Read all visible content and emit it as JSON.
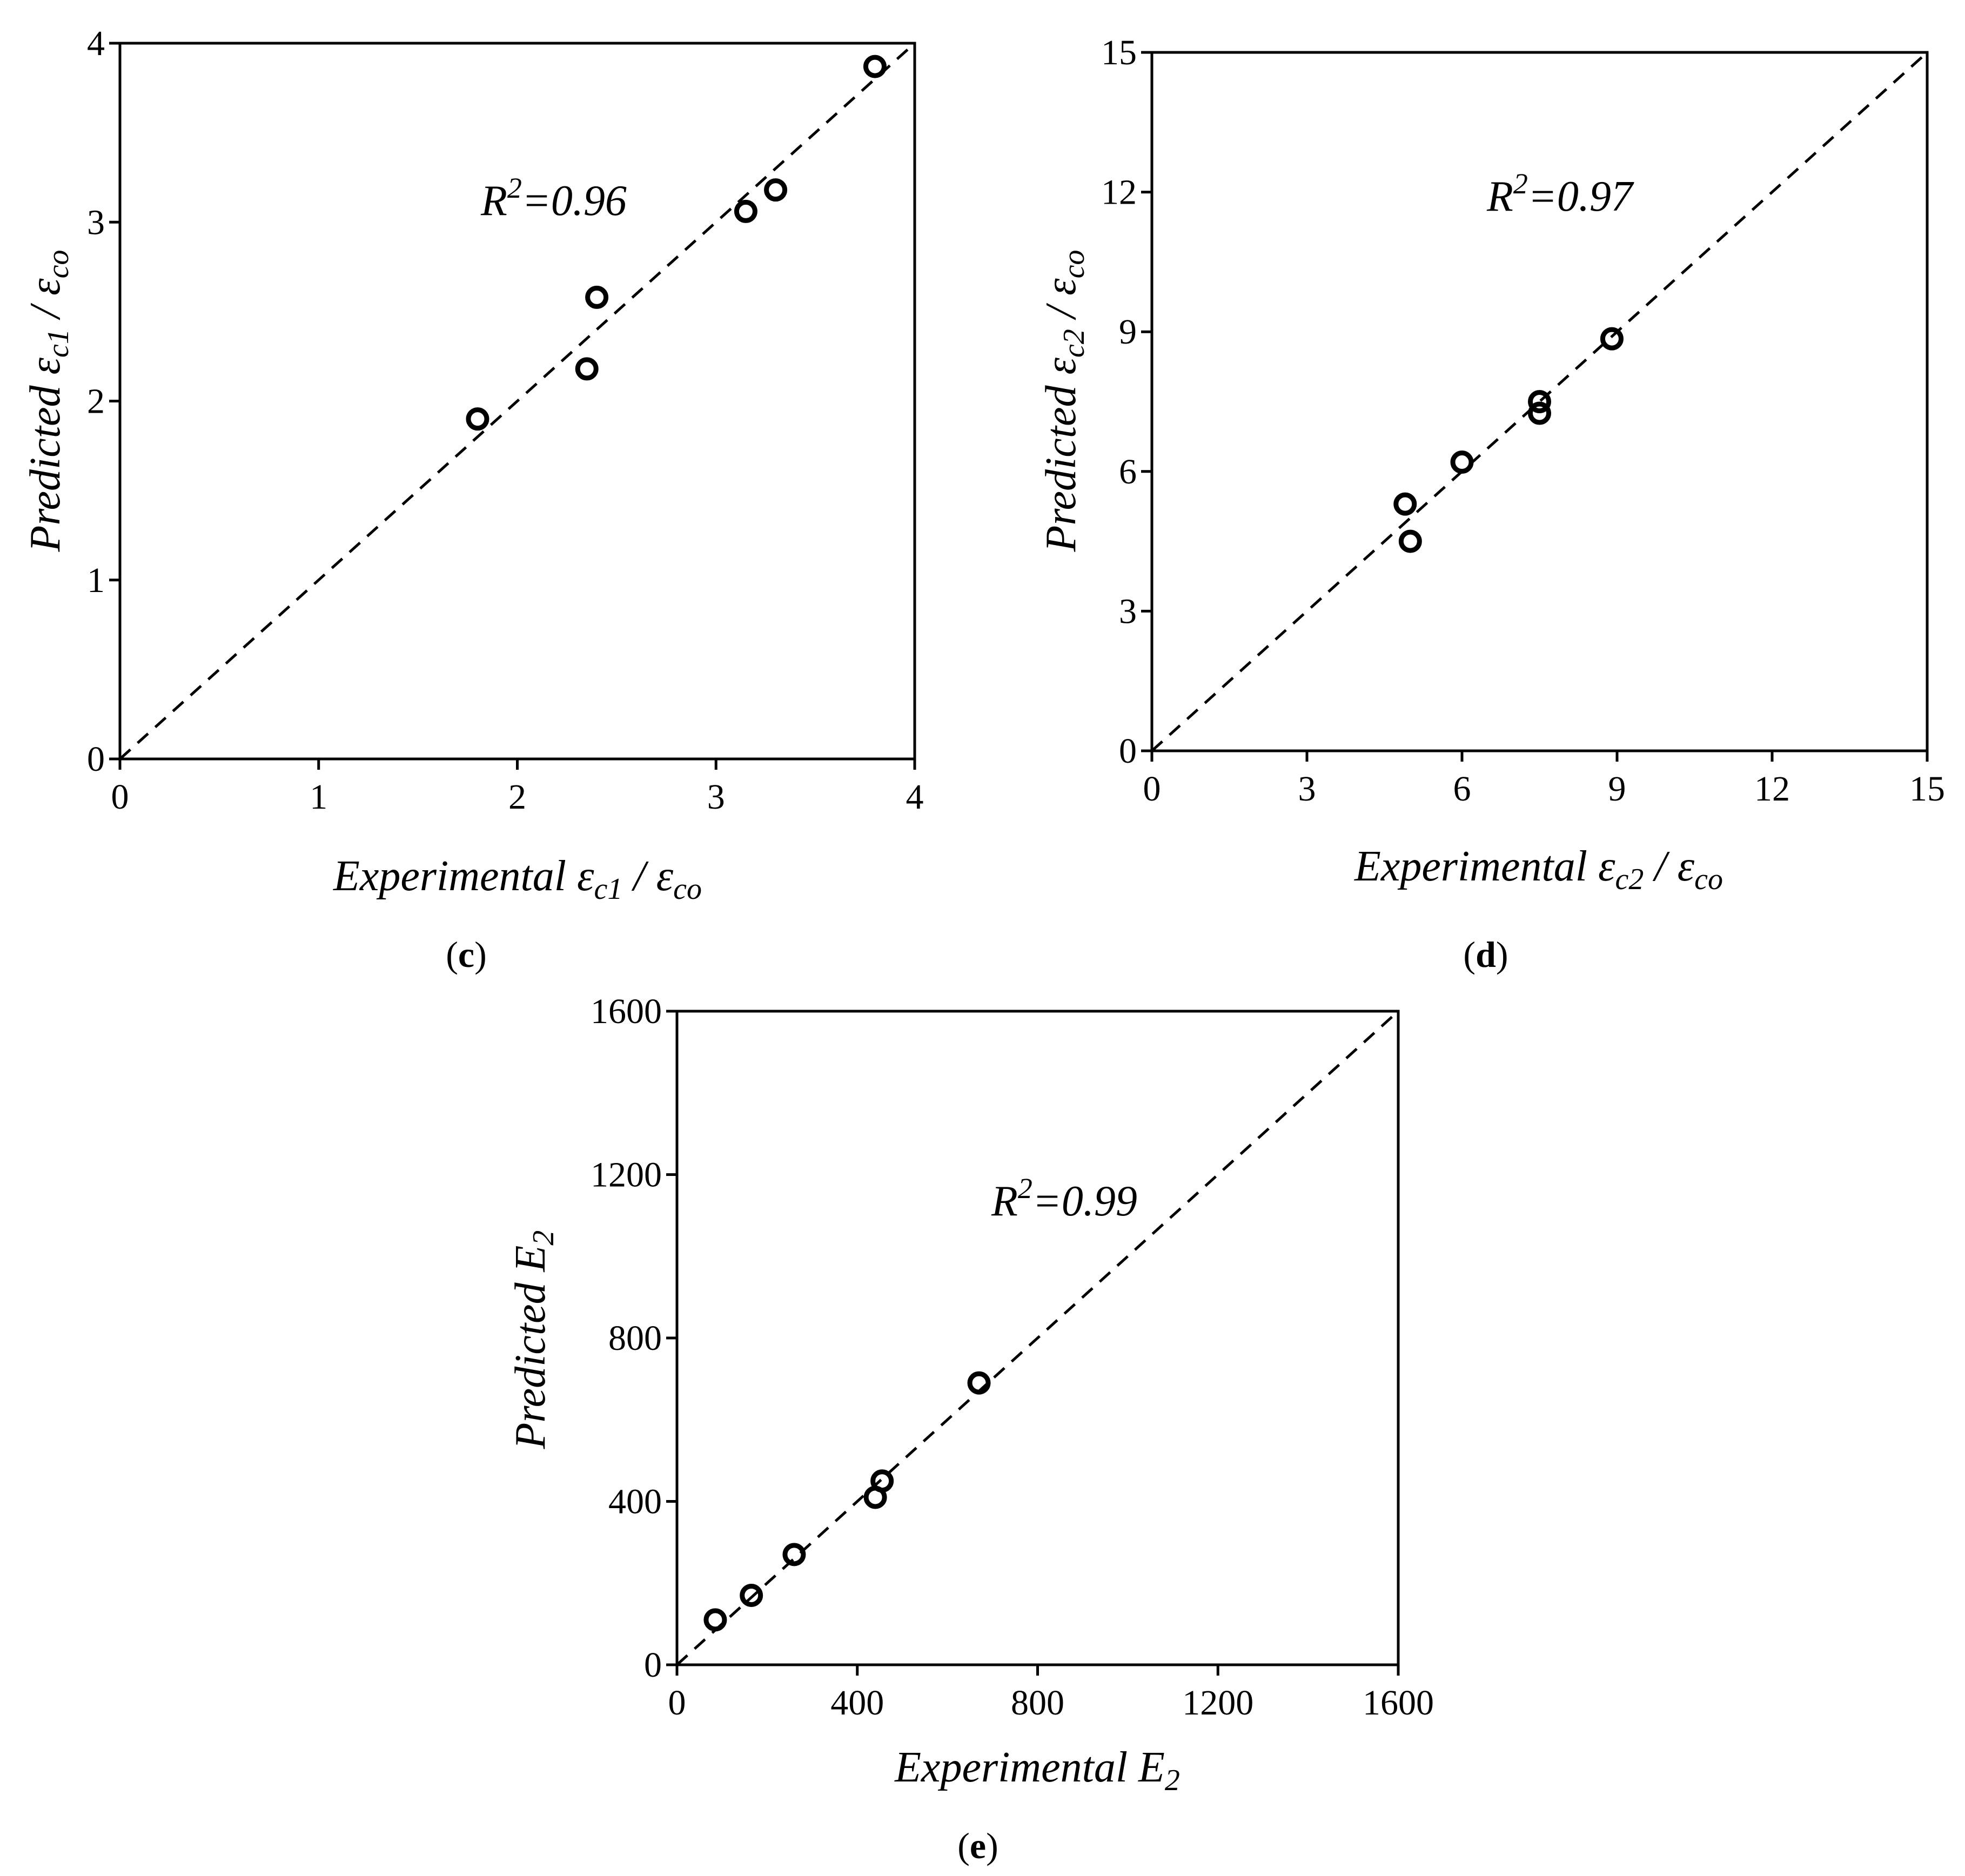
{
  "chart_data": [
    {
      "type": "scatter",
      "panel_label": "c",
      "xlabel": {
        "prefix": "Experimental ",
        "symbol": "ε",
        "sub": "c1",
        "sep": " / ",
        "symbol2": "ε",
        "sub2": "co"
      },
      "ylabel": {
        "prefix": "Predicted ",
        "symbol": "ε",
        "sub": "c1",
        "sep": " / ",
        "symbol2": "ε",
        "sub2": "co"
      },
      "annotation": {
        "base": "R",
        "sup": "2",
        "rest": "=0.96"
      },
      "xlim": [
        0,
        4
      ],
      "ylim": [
        0,
        4
      ],
      "xticks": [
        "0",
        "1",
        "2",
        "3",
        "4"
      ],
      "yticks": [
        "0",
        "1",
        "2",
        "3",
        "4"
      ],
      "reference_line": "y = x (dashed)",
      "points": [
        {
          "x": 1.8,
          "y": 1.9
        },
        {
          "x": 2.35,
          "y": 2.18
        },
        {
          "x": 2.4,
          "y": 2.58
        },
        {
          "x": 3.15,
          "y": 3.06
        },
        {
          "x": 3.3,
          "y": 3.18
        },
        {
          "x": 3.8,
          "y": 3.87
        }
      ]
    },
    {
      "type": "scatter",
      "panel_label": "d",
      "xlabel": {
        "prefix": "Experimental ",
        "symbol": "ε",
        "sub": "c2",
        "sep": " / ",
        "symbol2": "ε",
        "sub2": "co"
      },
      "ylabel": {
        "prefix": "Predicted ",
        "symbol": "ε",
        "sub": "c2",
        "sep": " / ",
        "symbol2": "ε",
        "sub2": "co"
      },
      "annotation": {
        "base": "R",
        "sup": "2",
        "rest": "=0.97"
      },
      "xlim": [
        0,
        15
      ],
      "ylim": [
        0,
        15
      ],
      "xticks": [
        "0",
        "3",
        "6",
        "9",
        "12",
        "15"
      ],
      "yticks": [
        "0",
        "3",
        "6",
        "9",
        "12",
        "15"
      ],
      "reference_line": "y = x (dashed)",
      "points": [
        {
          "x": 4.9,
          "y": 5.3
        },
        {
          "x": 5.0,
          "y": 4.5
        },
        {
          "x": 6.0,
          "y": 6.2
        },
        {
          "x": 7.5,
          "y": 7.5
        },
        {
          "x": 7.5,
          "y": 7.25
        },
        {
          "x": 8.9,
          "y": 8.85
        }
      ]
    },
    {
      "type": "scatter",
      "panel_label": "e",
      "xlabel": {
        "prefix": "Experimental ",
        "symbol": "E",
        "sub": "2"
      },
      "ylabel": {
        "prefix": "Predicted ",
        "symbol": "E",
        "sub": "2"
      },
      "annotation": {
        "base": "R",
        "sup": "2",
        "rest": "=0.99"
      },
      "xlim": [
        0,
        1600
      ],
      "ylim": [
        0,
        1600
      ],
      "xticks": [
        "0",
        "400",
        "800",
        "1200",
        "1600"
      ],
      "yticks": [
        "0",
        "400",
        "800",
        "1200",
        "1600"
      ],
      "reference_line": "y = x (dashed)",
      "points": [
        {
          "x": 85,
          "y": 110
        },
        {
          "x": 165,
          "y": 170
        },
        {
          "x": 260,
          "y": 270
        },
        {
          "x": 440,
          "y": 410
        },
        {
          "x": 455,
          "y": 450
        },
        {
          "x": 670,
          "y": 690
        }
      ]
    }
  ]
}
